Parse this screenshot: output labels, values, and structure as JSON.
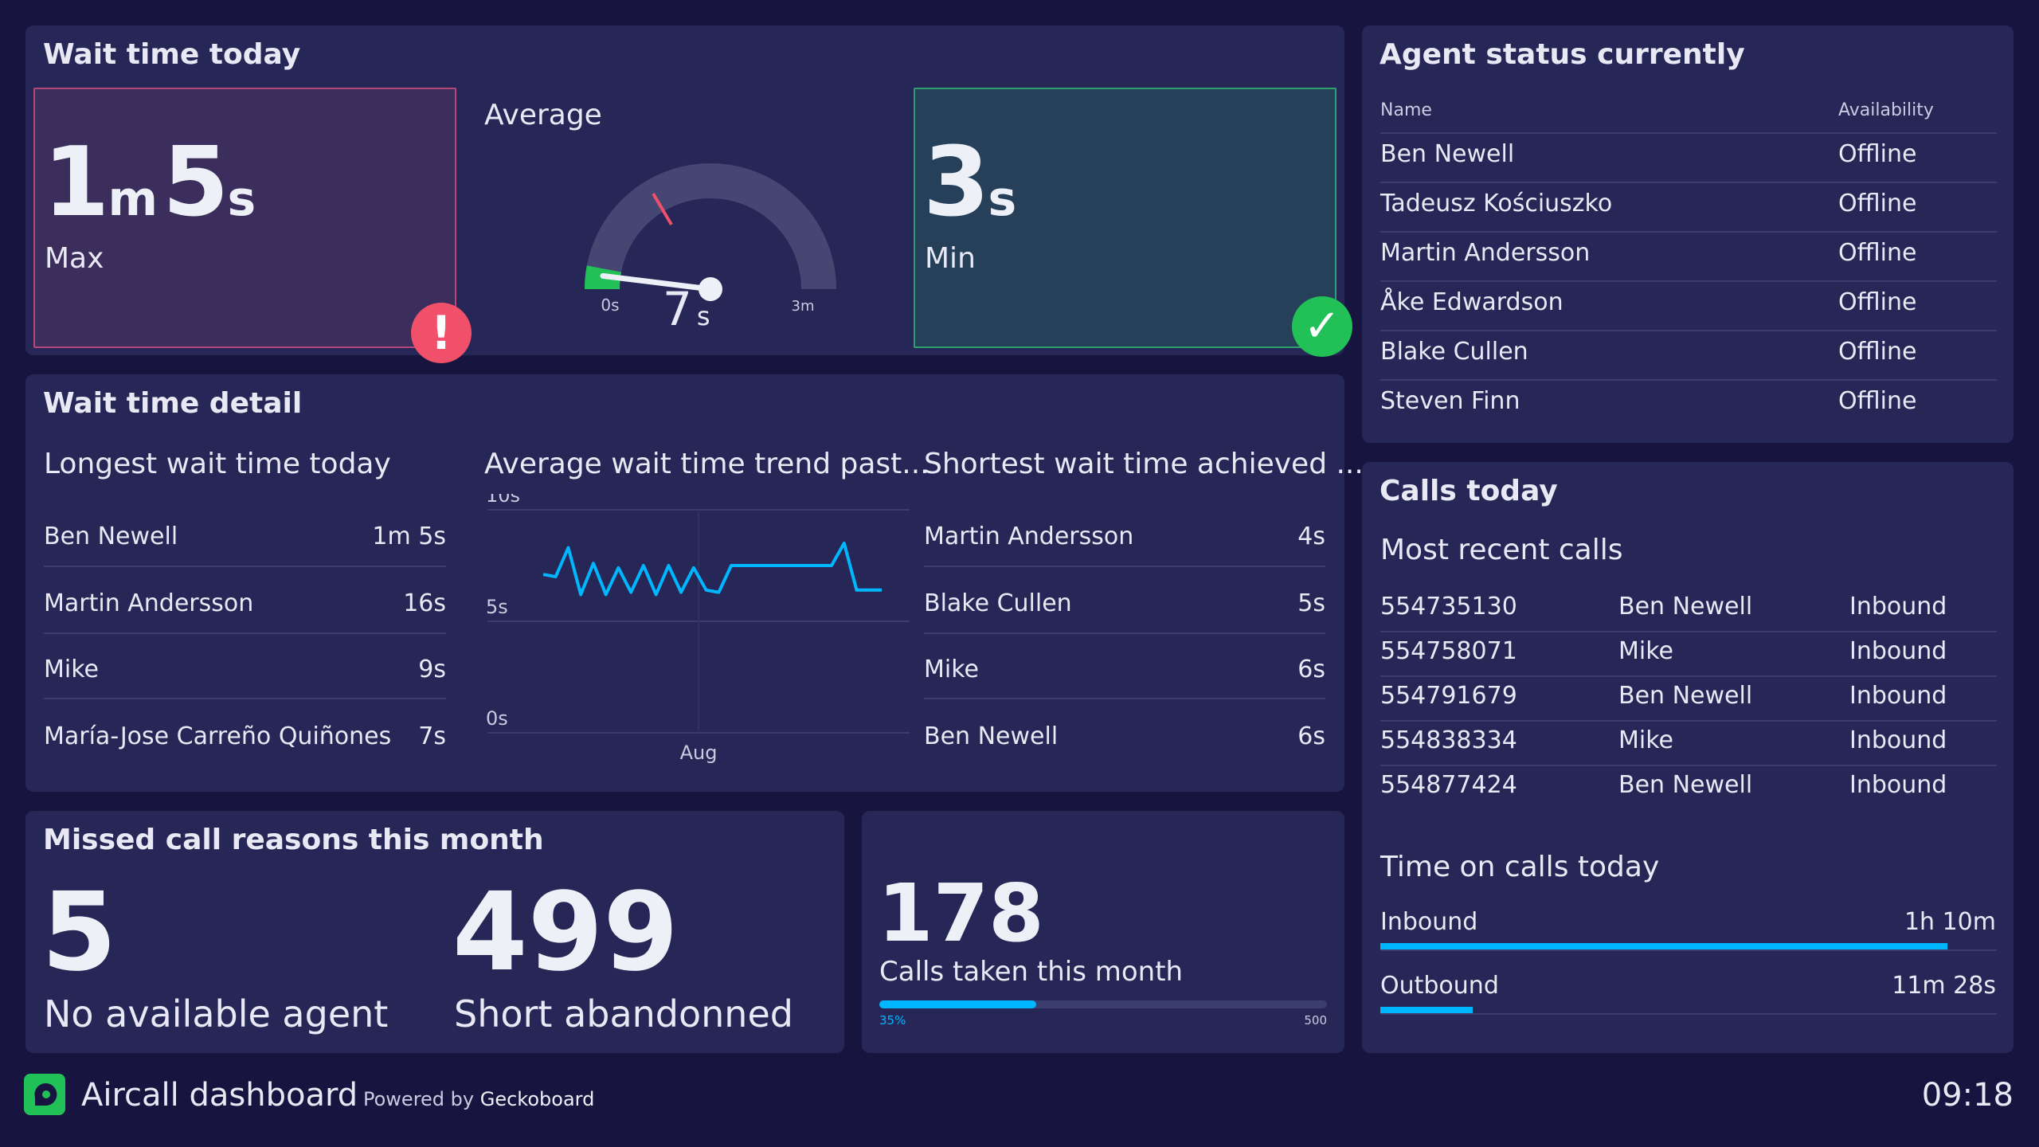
{
  "colors": {
    "background": "#171540",
    "panel": "#262757",
    "accent_blue": "#00b7ff",
    "alert_red": "#f0506a",
    "ok_green": "#21c157"
  },
  "wait_time_today": {
    "title": "Wait time today",
    "max": {
      "minutes": "1",
      "minutes_unit": "m",
      "seconds": "5",
      "seconds_unit": "s",
      "label": "Max",
      "status_icon": "exclamation-icon"
    },
    "average": {
      "label": "Average",
      "value": "7",
      "unit": "s",
      "gauge_min": "0s",
      "gauge_max": "3m",
      "value_seconds": 7,
      "min_seconds": 0,
      "max_seconds": 180
    },
    "min": {
      "value": "3",
      "unit": "s",
      "label": "Min",
      "status_icon": "checkmark-icon"
    }
  },
  "wait_time_detail": {
    "title": "Wait time detail",
    "longest": {
      "title": "Longest wait time today",
      "rows": [
        {
          "name": "Ben Newell",
          "value": "1m 5s"
        },
        {
          "name": "Martin Andersson",
          "value": "16s"
        },
        {
          "name": "Mike",
          "value": "9s"
        },
        {
          "name": "María-Jose Carreño Quiñones",
          "value": "7s"
        }
      ]
    },
    "trend": {
      "title": "Average wait time trend past..."
    },
    "shortest": {
      "title": "Shortest wait time achieved ...",
      "rows": [
        {
          "name": "Martin Andersson",
          "value": "4s"
        },
        {
          "name": "Blake Cullen",
          "value": "5s"
        },
        {
          "name": "Mike",
          "value": "6s"
        },
        {
          "name": "Ben Newell",
          "value": "6s"
        }
      ]
    }
  },
  "chart_data": {
    "type": "line",
    "title": "Average wait time trend past...",
    "x_tick_labels": [
      "Aug"
    ],
    "y_tick_labels": [
      "10s",
      "5s",
      "0s"
    ],
    "ylim": [
      0,
      10
    ],
    "grid": true,
    "series": [
      {
        "values": [
          7.1,
          7.0,
          8.3,
          6.2,
          7.6,
          6.2,
          7.4,
          6.3,
          7.5,
          6.2,
          7.5,
          6.3,
          7.4,
          6.4,
          6.3,
          7.5,
          7.5,
          7.5,
          7.5,
          7.5,
          7.5,
          7.5,
          7.5,
          7.5,
          8.5,
          6.4,
          6.4,
          6.4
        ]
      }
    ]
  },
  "missed_calls": {
    "title": "Missed call reasons this month",
    "items": [
      {
        "value": "5",
        "label": "No available agent"
      },
      {
        "value": "499",
        "label": "Short abandonned"
      }
    ]
  },
  "calls_taken": {
    "value": "178",
    "label": "Calls taken this month",
    "progress_label": "35%",
    "max_label": "500",
    "progress": 0.35
  },
  "agent_status": {
    "title": "Agent status currently",
    "col_name": "Name",
    "col_availability": "Availability",
    "rows": [
      {
        "name": "Ben Newell",
        "status": "Offline"
      },
      {
        "name": "Tadeusz Kościuszko",
        "status": "Offline"
      },
      {
        "name": "Martin Andersson",
        "status": "Offline"
      },
      {
        "name": "Åke Edwardson",
        "status": "Offline"
      },
      {
        "name": "Blake Cullen",
        "status": "Offline"
      },
      {
        "name": "Steven Finn",
        "status": "Offline"
      }
    ]
  },
  "calls_today": {
    "title": "Calls today",
    "recent_title": "Most recent calls",
    "calls": [
      {
        "number": "554735130",
        "agent": "Ben Newell",
        "direction": "Inbound"
      },
      {
        "number": "554758071",
        "agent": "Mike",
        "direction": "Inbound"
      },
      {
        "number": "554791679",
        "agent": "Ben Newell",
        "direction": "Inbound"
      },
      {
        "number": "554838334",
        "agent": "Mike",
        "direction": "Inbound"
      },
      {
        "number": "554877424",
        "agent": "Ben Newell",
        "direction": "Inbound"
      }
    ],
    "time_title": "Time on calls today",
    "time_rows": [
      {
        "label": "Inbound",
        "value": "1h 10m",
        "fraction": 0.92
      },
      {
        "label": "Outbound",
        "value": "11m 28s",
        "fraction": 0.15
      }
    ]
  },
  "footer": {
    "logo_icon": "aircall-logo-icon",
    "title": "Aircall dashboard",
    "powered_prefix": "Powered by",
    "powered_brand": "Geckoboard",
    "clock": "09:18"
  }
}
